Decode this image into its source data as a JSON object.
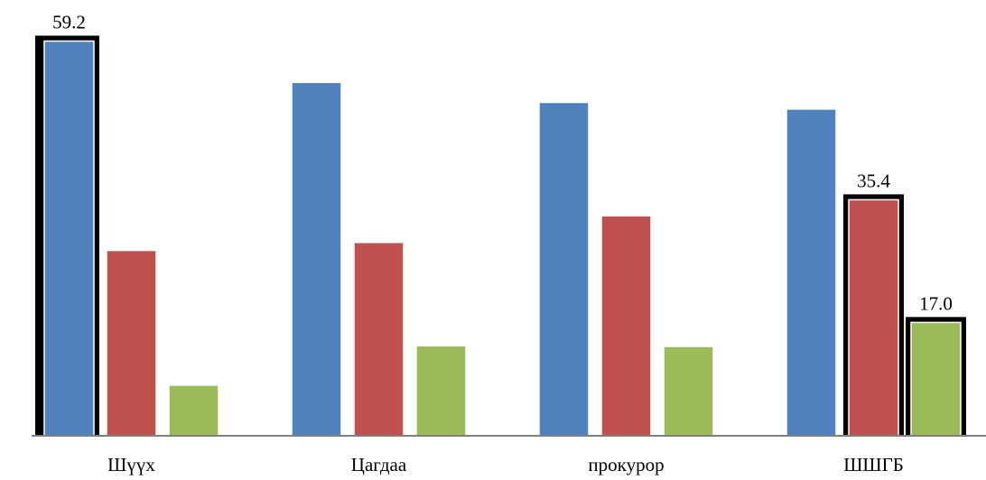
{
  "chart_data": {
    "type": "bar",
    "categories": [
      "Шүүх",
      "Цагдаа",
      "прокурор",
      "ШШГБ"
    ],
    "series": [
      {
        "color": "#4f81bd",
        "values": [
          59.2,
          53.0,
          50.0,
          49.0
        ]
      },
      {
        "color": "#c0504d",
        "values": [
          27.8,
          29.0,
          33.0,
          35.4
        ]
      },
      {
        "color": "#9bbb59",
        "values": [
          7.6,
          13.5,
          13.4,
          17.0
        ]
      }
    ],
    "data_labels": [
      {
        "series": 0,
        "category": 0,
        "text": "59.2"
      },
      {
        "series": 1,
        "category": 3,
        "text": "35.4"
      },
      {
        "series": 2,
        "category": 3,
        "text": "17.0"
      }
    ],
    "title": "",
    "xlabel": "",
    "ylabel": "",
    "ylim": [
      0,
      60
    ],
    "grid": false,
    "legend": "none",
    "label_box_color": "#000000",
    "axis_color": "#7f7f7f"
  }
}
